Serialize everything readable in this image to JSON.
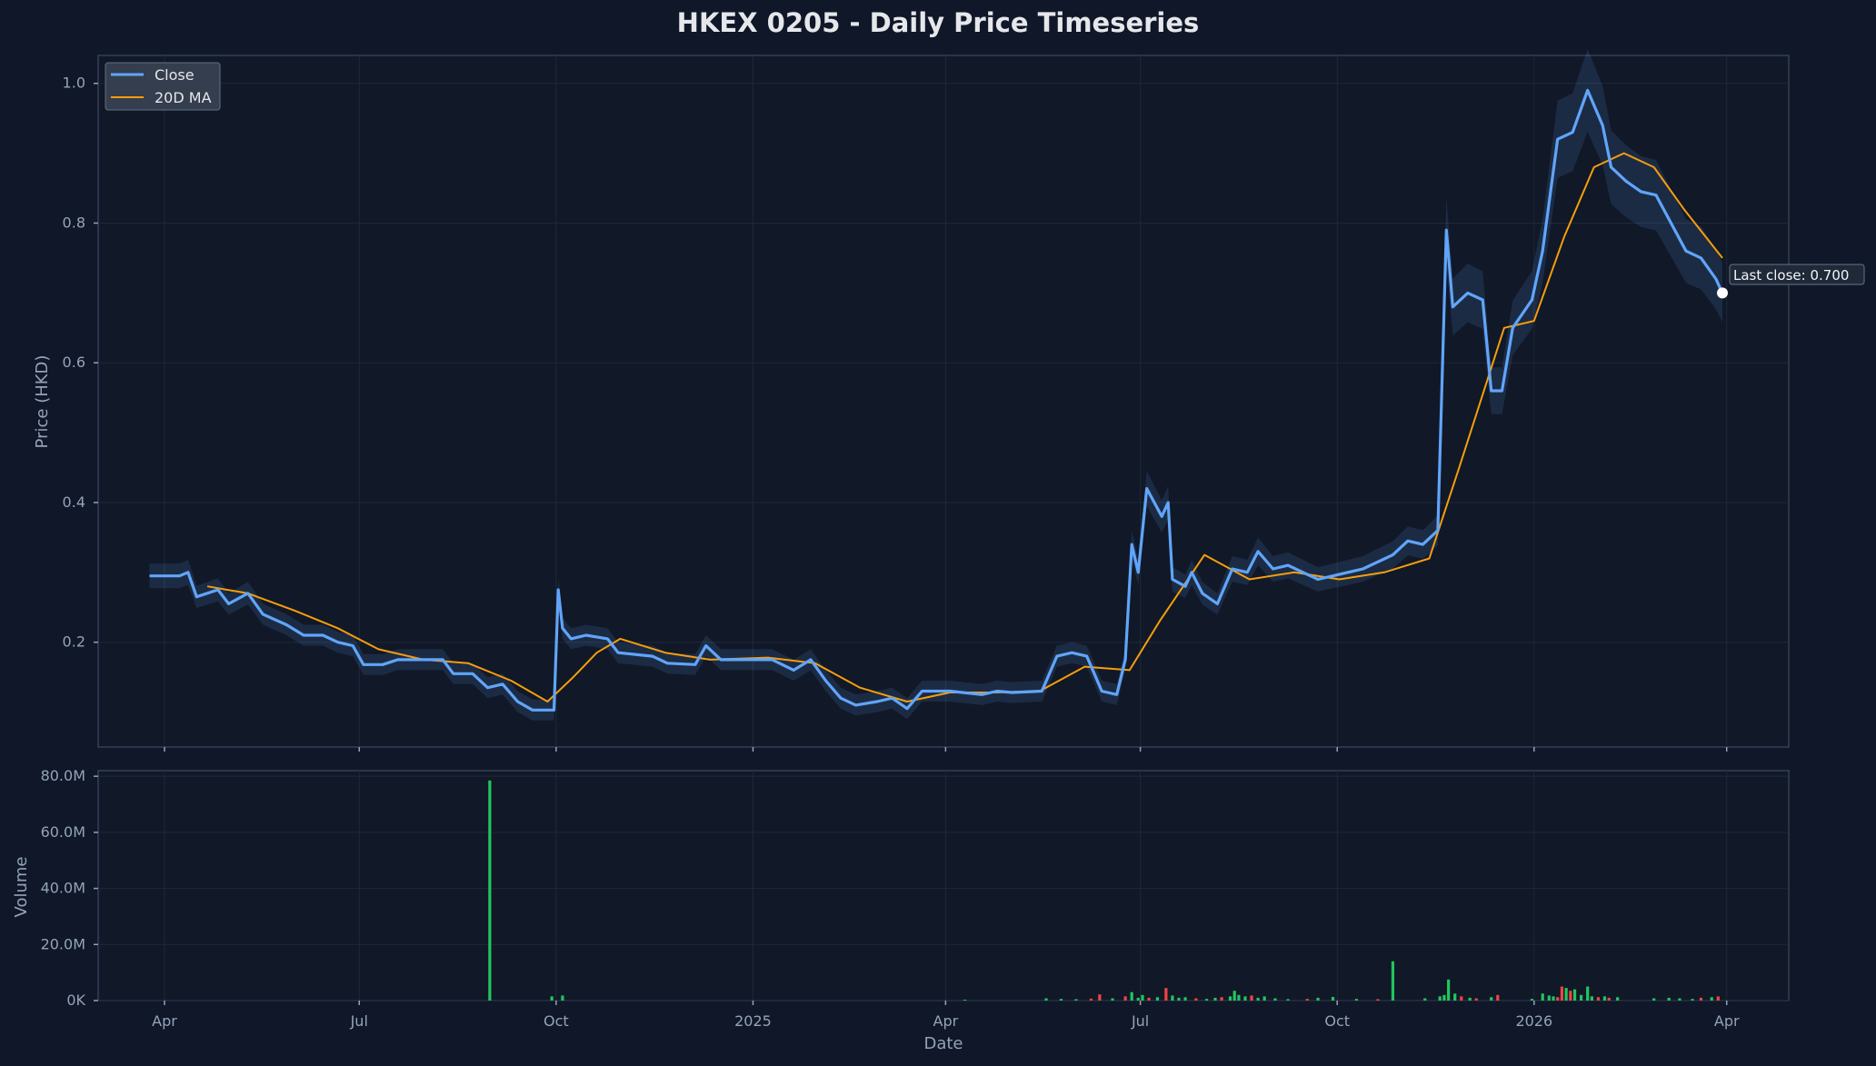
{
  "chart_data": {
    "type": "line",
    "title": "HKEX 0205 - Daily Price Timeseries",
    "xlabel": "Date",
    "x_ticks": [
      "Apr",
      "Jul",
      "Oct",
      "2025",
      "Apr",
      "Jul",
      "Oct",
      "2026",
      "Apr"
    ],
    "price_panel": {
      "ylabel": "Price (HKD)",
      "ylim": [
        0.05,
        1.04
      ],
      "yticks": [
        "0.2",
        "0.4",
        "0.6",
        "0.8",
        "1.0"
      ],
      "legend_placement": "top-left",
      "grid": true,
      "series": [
        {
          "name": "Close",
          "color": "#60a5fa",
          "points": [
            [
              "2024-03-25",
              0.295
            ],
            [
              "2024-04-08",
              0.295
            ],
            [
              "2024-04-12",
              0.3
            ],
            [
              "2024-04-16",
              0.265
            ],
            [
              "2024-04-26",
              0.275
            ],
            [
              "2024-05-01",
              0.255
            ],
            [
              "2024-05-10",
              0.27
            ],
            [
              "2024-05-17",
              0.24
            ],
            [
              "2024-05-28",
              0.225
            ],
            [
              "2024-06-05",
              0.21
            ],
            [
              "2024-06-14",
              0.21
            ],
            [
              "2024-06-21",
              0.2
            ],
            [
              "2024-06-28",
              0.195
            ],
            [
              "2024-07-03",
              0.168
            ],
            [
              "2024-07-12",
              0.168
            ],
            [
              "2024-07-19",
              0.175
            ],
            [
              "2024-08-09",
              0.175
            ],
            [
              "2024-08-14",
              0.155
            ],
            [
              "2024-08-23",
              0.155
            ],
            [
              "2024-08-30",
              0.135
            ],
            [
              "2024-09-06",
              0.14
            ],
            [
              "2024-09-13",
              0.115
            ],
            [
              "2024-09-20",
              0.103
            ],
            [
              "2024-09-27",
              0.103
            ],
            [
              "2024-09-30",
              0.103
            ],
            [
              "2024-10-02",
              0.275
            ],
            [
              "2024-10-04",
              0.22
            ],
            [
              "2024-10-08",
              0.205
            ],
            [
              "2024-10-15",
              0.21
            ],
            [
              "2024-10-25",
              0.205
            ],
            [
              "2024-10-30",
              0.185
            ],
            [
              "2024-11-15",
              0.18
            ],
            [
              "2024-11-22",
              0.17
            ],
            [
              "2024-12-05",
              0.168
            ],
            [
              "2024-12-10",
              0.195
            ],
            [
              "2024-12-17",
              0.175
            ],
            [
              "2024-12-27",
              0.175
            ],
            [
              "2025-01-10",
              0.175
            ],
            [
              "2025-01-20",
              0.16
            ],
            [
              "2025-01-28",
              0.175
            ],
            [
              "2025-02-04",
              0.145
            ],
            [
              "2025-02-11",
              0.12
            ],
            [
              "2025-02-18",
              0.11
            ],
            [
              "2025-02-28",
              0.115
            ],
            [
              "2025-03-07",
              0.12
            ],
            [
              "2025-03-14",
              0.105
            ],
            [
              "2025-03-21",
              0.13
            ],
            [
              "2025-04-03",
              0.13
            ],
            [
              "2025-04-18",
              0.125
            ],
            [
              "2025-04-25",
              0.13
            ],
            [
              "2025-05-02",
              0.128
            ],
            [
              "2025-05-16",
              0.13
            ],
            [
              "2025-05-23",
              0.18
            ],
            [
              "2025-05-30",
              0.185
            ],
            [
              "2025-06-06",
              0.18
            ],
            [
              "2025-06-13",
              0.13
            ],
            [
              "2025-06-20",
              0.125
            ],
            [
              "2025-06-24",
              0.175
            ],
            [
              "2025-06-27",
              0.34
            ],
            [
              "2025-06-30",
              0.3
            ],
            [
              "2025-07-04",
              0.42
            ],
            [
              "2025-07-11",
              0.38
            ],
            [
              "2025-07-14",
              0.4
            ],
            [
              "2025-07-16",
              0.29
            ],
            [
              "2025-07-22",
              0.28
            ],
            [
              "2025-07-25",
              0.3
            ],
            [
              "2025-07-30",
              0.27
            ],
            [
              "2025-08-06",
              0.255
            ],
            [
              "2025-08-13",
              0.305
            ],
            [
              "2025-08-20",
              0.3
            ],
            [
              "2025-08-25",
              0.33
            ],
            [
              "2025-09-01",
              0.305
            ],
            [
              "2025-09-08",
              0.31
            ],
            [
              "2025-09-15",
              0.3
            ],
            [
              "2025-09-22",
              0.29
            ],
            [
              "2025-09-29",
              0.295
            ],
            [
              "2025-10-06",
              0.3
            ],
            [
              "2025-10-13",
              0.305
            ],
            [
              "2025-10-20",
              0.315
            ],
            [
              "2025-10-27",
              0.325
            ],
            [
              "2025-11-03",
              0.345
            ],
            [
              "2025-11-10",
              0.34
            ],
            [
              "2025-11-17",
              0.36
            ],
            [
              "2025-11-20",
              0.68
            ],
            [
              "2025-11-21",
              0.79
            ],
            [
              "2025-11-24",
              0.68
            ],
            [
              "2025-12-01",
              0.7
            ],
            [
              "2025-12-08",
              0.69
            ],
            [
              "2025-12-12",
              0.56
            ],
            [
              "2025-12-17",
              0.56
            ],
            [
              "2025-12-22",
              0.65
            ],
            [
              "2025-12-31",
              0.69
            ],
            [
              "2026-01-05",
              0.76
            ],
            [
              "2026-01-12",
              0.92
            ],
            [
              "2026-01-19",
              0.93
            ],
            [
              "2026-01-26",
              0.99
            ],
            [
              "2026-02-02",
              0.94
            ],
            [
              "2026-02-06",
              0.88
            ],
            [
              "2026-02-13",
              0.86
            ],
            [
              "2026-02-20",
              0.845
            ],
            [
              "2026-02-27",
              0.84
            ],
            [
              "2026-03-06",
              0.8
            ],
            [
              "2026-03-13",
              0.76
            ],
            [
              "2026-03-20",
              0.75
            ],
            [
              "2026-03-27",
              0.72
            ],
            [
              "2026-03-30",
              0.7
            ]
          ]
        },
        {
          "name": "20D MA",
          "color": "#f59e0b",
          "points": [
            [
              "2024-04-21",
              0.28
            ],
            [
              "2024-05-10",
              0.27
            ],
            [
              "2024-06-01",
              0.245
            ],
            [
              "2024-06-21",
              0.22
            ],
            [
              "2024-07-10",
              0.19
            ],
            [
              "2024-07-31",
              0.175
            ],
            [
              "2024-08-21",
              0.17
            ],
            [
              "2024-09-10",
              0.145
            ],
            [
              "2024-09-27",
              0.115
            ],
            [
              "2024-10-09",
              0.15
            ],
            [
              "2024-10-20",
              0.185
            ],
            [
              "2024-10-31",
              0.205
            ],
            [
              "2024-11-21",
              0.185
            ],
            [
              "2024-12-12",
              0.175
            ],
            [
              "2025-01-08",
              0.178
            ],
            [
              "2025-01-30",
              0.17
            ],
            [
              "2025-02-20",
              0.135
            ],
            [
              "2025-03-14",
              0.115
            ],
            [
              "2025-04-03",
              0.128
            ],
            [
              "2025-04-24",
              0.128
            ],
            [
              "2025-05-15",
              0.13
            ],
            [
              "2025-06-05",
              0.165
            ],
            [
              "2025-06-26",
              0.16
            ],
            [
              "2025-07-10",
              0.23
            ],
            [
              "2025-07-31",
              0.325
            ],
            [
              "2025-08-21",
              0.29
            ],
            [
              "2025-09-11",
              0.3
            ],
            [
              "2025-10-02",
              0.29
            ],
            [
              "2025-10-23",
              0.3
            ],
            [
              "2025-11-13",
              0.32
            ],
            [
              "2025-11-27",
              0.45
            ],
            [
              "2025-12-18",
              0.65
            ],
            [
              "2026-01-01",
              0.66
            ],
            [
              "2026-01-15",
              0.78
            ],
            [
              "2026-01-29",
              0.88
            ],
            [
              "2026-02-12",
              0.9
            ],
            [
              "2026-02-26",
              0.88
            ],
            [
              "2026-03-12",
              0.82
            ],
            [
              "2026-03-30",
              0.75
            ]
          ]
        }
      ],
      "annotation": "Last close: 0.700"
    },
    "volume_panel": {
      "ylabel": "Volume",
      "ylim": [
        0,
        82
      ],
      "yticks": [
        "0K",
        "20.0M",
        "40.0M",
        "60.0M",
        "80.0M"
      ],
      "up_color": "#22c55e",
      "down_color": "#ef4444",
      "bars": [
        [
          "2024-08-31",
          78.5,
          "up"
        ],
        [
          "2024-09-29",
          1.5,
          "up"
        ],
        [
          "2024-10-04",
          1.8,
          "up"
        ],
        [
          "2025-04-10",
          0.3,
          "up"
        ],
        [
          "2025-05-18",
          0.8,
          "up"
        ],
        [
          "2025-05-25",
          0.6,
          "up"
        ],
        [
          "2025-06-01",
          0.5,
          "up"
        ],
        [
          "2025-06-08",
          0.7,
          "down"
        ],
        [
          "2025-06-12",
          2.2,
          "down"
        ],
        [
          "2025-06-18",
          0.8,
          "up"
        ],
        [
          "2025-06-24",
          1.5,
          "down"
        ],
        [
          "2025-06-27",
          3.0,
          "up"
        ],
        [
          "2025-06-30",
          1.0,
          "up"
        ],
        [
          "2025-07-02",
          2.0,
          "up"
        ],
        [
          "2025-07-05",
          1.0,
          "down"
        ],
        [
          "2025-07-09",
          1.2,
          "up"
        ],
        [
          "2025-07-13",
          4.5,
          "down"
        ],
        [
          "2025-07-16",
          1.8,
          "up"
        ],
        [
          "2025-07-19",
          1.0,
          "up"
        ],
        [
          "2025-07-22",
          1.2,
          "up"
        ],
        [
          "2025-07-27",
          0.8,
          "down"
        ],
        [
          "2025-08-01",
          0.6,
          "up"
        ],
        [
          "2025-08-05",
          1.0,
          "up"
        ],
        [
          "2025-08-08",
          1.2,
          "down"
        ],
        [
          "2025-08-12",
          1.5,
          "up"
        ],
        [
          "2025-08-14",
          3.5,
          "up"
        ],
        [
          "2025-08-16",
          2.0,
          "up"
        ],
        [
          "2025-08-19",
          1.5,
          "up"
        ],
        [
          "2025-08-22",
          1.8,
          "down"
        ],
        [
          "2025-08-25",
          1.0,
          "up"
        ],
        [
          "2025-08-28",
          1.5,
          "up"
        ],
        [
          "2025-09-02",
          0.8,
          "up"
        ],
        [
          "2025-09-08",
          0.5,
          "up"
        ],
        [
          "2025-09-17",
          0.6,
          "down"
        ],
        [
          "2025-09-22",
          1.0,
          "up"
        ],
        [
          "2025-09-29",
          1.3,
          "up"
        ],
        [
          "2025-10-10",
          0.6,
          "up"
        ],
        [
          "2025-10-20",
          0.5,
          "down"
        ],
        [
          "2025-10-27",
          14.0,
          "up"
        ],
        [
          "2025-11-11",
          0.8,
          "up"
        ],
        [
          "2025-11-18",
          1.5,
          "up"
        ],
        [
          "2025-11-20",
          2.0,
          "up"
        ],
        [
          "2025-11-22",
          7.5,
          "up"
        ],
        [
          "2025-11-25",
          2.5,
          "up"
        ],
        [
          "2025-11-28",
          1.5,
          "down"
        ],
        [
          "2025-12-02",
          1.0,
          "up"
        ],
        [
          "2025-12-05",
          0.8,
          "down"
        ],
        [
          "2025-12-12",
          1.2,
          "up"
        ],
        [
          "2025-12-15",
          2.0,
          "down"
        ],
        [
          "2025-12-31",
          0.6,
          "up"
        ],
        [
          "2026-01-05",
          2.5,
          "up"
        ],
        [
          "2026-01-08",
          1.8,
          "up"
        ],
        [
          "2026-01-10",
          1.5,
          "up"
        ],
        [
          "2026-01-12",
          1.2,
          "down"
        ],
        [
          "2026-01-14",
          5.0,
          "down"
        ],
        [
          "2026-01-16",
          4.5,
          "up"
        ],
        [
          "2026-01-18",
          3.5,
          "down"
        ],
        [
          "2026-01-20",
          4.0,
          "up"
        ],
        [
          "2026-01-23",
          2.0,
          "up"
        ],
        [
          "2026-01-26",
          5.0,
          "up"
        ],
        [
          "2026-01-28",
          1.5,
          "up"
        ],
        [
          "2026-01-31",
          1.2,
          "down"
        ],
        [
          "2026-02-03",
          1.5,
          "up"
        ],
        [
          "2026-02-05",
          1.0,
          "down"
        ],
        [
          "2026-02-09",
          1.2,
          "up"
        ],
        [
          "2026-02-26",
          0.8,
          "up"
        ],
        [
          "2026-03-05",
          1.0,
          "up"
        ],
        [
          "2026-03-10",
          0.8,
          "up"
        ],
        [
          "2026-03-16",
          0.6,
          "up"
        ],
        [
          "2026-03-20",
          1.0,
          "down"
        ],
        [
          "2026-03-25",
          1.2,
          "up"
        ],
        [
          "2026-03-28",
          1.5,
          "down"
        ]
      ]
    }
  }
}
